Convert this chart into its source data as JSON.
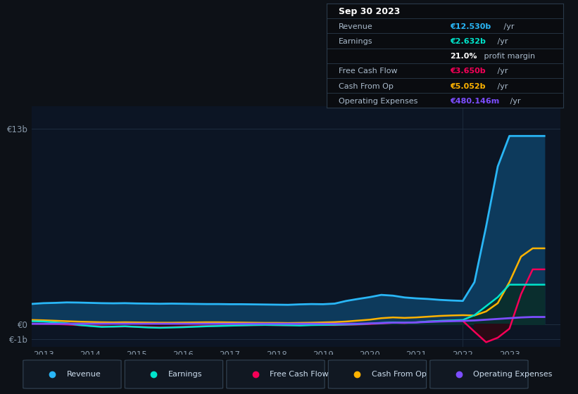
{
  "bg_color": "#0d1117",
  "chart_bg": "#0c1524",
  "grid_color": "#1e2d40",
  "revenue_color": "#29b6f6",
  "earnings_color": "#00e5cc",
  "fcf_color": "#f50057",
  "cashfromop_color": "#ffb300",
  "opex_color": "#7c4dff",
  "revenue_fill": "#0d3a5c",
  "earnings_fill": "#0a2e2e",
  "years": [
    2012.75,
    2013.0,
    2013.25,
    2013.5,
    2013.75,
    2014.0,
    2014.25,
    2014.5,
    2014.75,
    2015.0,
    2015.25,
    2015.5,
    2015.75,
    2016.0,
    2016.25,
    2016.5,
    2016.75,
    2017.0,
    2017.25,
    2017.5,
    2017.75,
    2018.0,
    2018.25,
    2018.5,
    2018.75,
    2019.0,
    2019.25,
    2019.5,
    2019.75,
    2020.0,
    2020.25,
    2020.5,
    2020.75,
    2021.0,
    2021.25,
    2021.5,
    2021.75,
    2022.0,
    2022.25,
    2022.5,
    2022.75,
    2023.0,
    2023.25,
    2023.5,
    2023.75
  ],
  "revenue": [
    1.35,
    1.4,
    1.42,
    1.45,
    1.44,
    1.42,
    1.4,
    1.39,
    1.4,
    1.38,
    1.37,
    1.36,
    1.37,
    1.36,
    1.35,
    1.34,
    1.34,
    1.33,
    1.33,
    1.32,
    1.31,
    1.3,
    1.29,
    1.32,
    1.34,
    1.33,
    1.37,
    1.55,
    1.68,
    1.8,
    1.95,
    1.9,
    1.78,
    1.72,
    1.68,
    1.62,
    1.58,
    1.55,
    2.8,
    6.5,
    10.5,
    12.53,
    12.53,
    12.53,
    12.53
  ],
  "earnings": [
    0.2,
    0.18,
    0.12,
    0.06,
    -0.05,
    -0.12,
    -0.18,
    -0.16,
    -0.14,
    -0.18,
    -0.22,
    -0.24,
    -0.22,
    -0.2,
    -0.17,
    -0.14,
    -0.12,
    -0.1,
    -0.08,
    -0.06,
    -0.05,
    -0.06,
    -0.07,
    -0.09,
    -0.06,
    -0.05,
    -0.04,
    -0.02,
    0.0,
    0.04,
    0.08,
    0.12,
    0.1,
    0.12,
    0.18,
    0.22,
    0.25,
    0.28,
    0.6,
    1.2,
    1.8,
    2.63,
    2.63,
    2.63,
    2.63
  ],
  "fcf": [
    0.03,
    0.02,
    0.01,
    -0.02,
    -0.06,
    -0.1,
    -0.14,
    -0.16,
    -0.15,
    -0.17,
    -0.19,
    -0.22,
    -0.2,
    -0.17,
    -0.14,
    -0.12,
    -0.1,
    -0.08,
    -0.07,
    -0.06,
    -0.05,
    -0.06,
    -0.07,
    -0.05,
    -0.04,
    -0.05,
    -0.06,
    -0.04,
    -0.02,
    0.01,
    0.05,
    0.1,
    0.08,
    0.12,
    0.18,
    0.22,
    0.25,
    0.22,
    -0.5,
    -1.2,
    -0.9,
    -0.3,
    2.0,
    3.65,
    3.65
  ],
  "cashfromop": [
    0.28,
    0.26,
    0.23,
    0.2,
    0.17,
    0.15,
    0.13,
    0.12,
    0.13,
    0.12,
    0.11,
    0.1,
    0.1,
    0.11,
    0.12,
    0.13,
    0.13,
    0.12,
    0.11,
    0.1,
    0.09,
    0.09,
    0.08,
    0.09,
    0.1,
    0.12,
    0.14,
    0.18,
    0.24,
    0.3,
    0.4,
    0.45,
    0.42,
    0.45,
    0.5,
    0.55,
    0.58,
    0.6,
    0.58,
    0.85,
    1.4,
    2.8,
    4.5,
    5.05,
    5.05
  ],
  "opex": [
    0.03,
    0.03,
    0.03,
    0.03,
    0.03,
    0.03,
    0.03,
    0.03,
    0.03,
    0.03,
    0.03,
    0.03,
    0.03,
    0.03,
    0.03,
    0.03,
    0.03,
    0.03,
    0.03,
    0.03,
    0.03,
    0.03,
    0.03,
    0.03,
    0.03,
    0.03,
    0.03,
    0.03,
    0.03,
    0.05,
    0.08,
    0.1,
    0.1,
    0.12,
    0.15,
    0.18,
    0.2,
    0.22,
    0.25,
    0.3,
    0.35,
    0.4,
    0.45,
    0.48,
    0.48
  ],
  "info_rows": [
    {
      "label": "Sep 30 2023",
      "val": "",
      "suffix": "",
      "header": true
    },
    {
      "label": "Revenue",
      "val": "€12.530b",
      "suffix": " /yr",
      "val_color": "#29b6f6"
    },
    {
      "label": "Earnings",
      "val": "€2.632b",
      "suffix": " /yr",
      "val_color": "#00e5cc"
    },
    {
      "label": "",
      "val": "21.0%",
      "suffix": " profit margin",
      "val_color": "white"
    },
    {
      "label": "Free Cash Flow",
      "val": "€3.650b",
      "suffix": " /yr",
      "val_color": "#f50057"
    },
    {
      "label": "Cash From Op",
      "val": "€5.052b",
      "suffix": " /yr",
      "val_color": "#ffb300"
    },
    {
      "label": "Operating Expenses",
      "val": "€480.146m",
      "suffix": " /yr",
      "val_color": "#7c4dff"
    }
  ],
  "legend_items": [
    {
      "label": "Revenue",
      "color": "#29b6f6"
    },
    {
      "label": "Earnings",
      "color": "#00e5cc"
    },
    {
      "label": "Free Cash Flow",
      "color": "#f50057"
    },
    {
      "label": "Cash From Op",
      "color": "#ffb300"
    },
    {
      "label": "Operating Expenses",
      "color": "#7c4dff"
    }
  ]
}
